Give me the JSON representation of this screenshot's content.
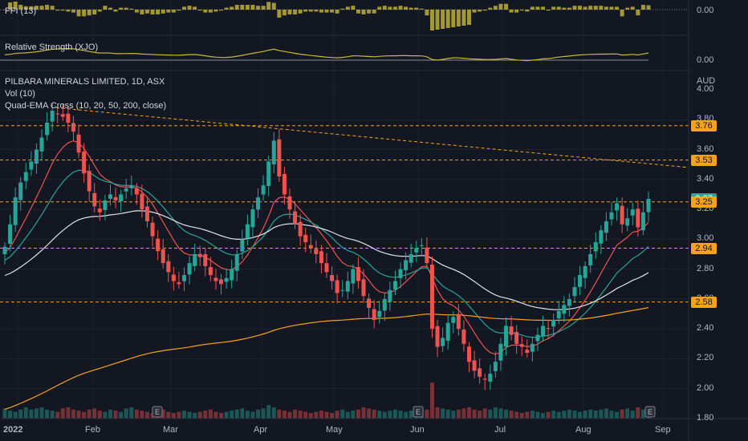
{
  "colors": {
    "background": "#131722",
    "grid": "#2a2e39",
    "up": "#26a69a",
    "down": "#ef5350",
    "ema10": "#ef5350",
    "ema20": "#26a69a",
    "ema50": "#e0e3eb",
    "ema200": "#f7a21b",
    "level_line": "#f7a21b",
    "trend_line": "#f7a21b",
    "indicator_bar": "#c9b93b",
    "rs_line": "#c9b93b",
    "tag_orange": "#f7a21b",
    "tag_teal": "#26a69a"
  },
  "indicators": {
    "ffi": {
      "label": "FFI (13)",
      "value": "0.00"
    },
    "rs": {
      "label": "Relative Strength (XJO)",
      "value": "0.00"
    }
  },
  "main": {
    "title": "PILBARA MINERALS LIMITED, 1D, ASX",
    "vol_label": "Vol (10)",
    "ema_label": "Quad-EMA Cross (10, 20, 50, 200, close)",
    "currency": "AUD"
  },
  "price_tags": [
    {
      "text": "3.76",
      "price": 3.76,
      "style": "orange"
    },
    {
      "text": "3.53",
      "price": 3.53,
      "style": "orange"
    },
    {
      "text": "3.27",
      "price": 3.27,
      "style": "teal"
    },
    {
      "text": "3.25",
      "price": 3.25,
      "style": "orange"
    },
    {
      "text": "2.94",
      "price": 2.94,
      "style": "orange"
    },
    {
      "text": "2.58",
      "price": 2.58,
      "style": "orange"
    }
  ],
  "chart_data": {
    "type": "candlestick",
    "title": "PILBARA MINERALS LIMITED, 1D, ASX",
    "y_axis_ticks": [
      "4.00",
      "3.80",
      "3.60",
      "3.40",
      "3.20",
      "3.00",
      "2.80",
      "2.60",
      "2.40",
      "2.20",
      "2.00",
      "1.80"
    ],
    "ylim": [
      1.8,
      4.0
    ],
    "x_axis_labels": [
      "2022",
      "Feb",
      "Mar",
      "Apr",
      "May",
      "Jun",
      "Jul",
      "Aug",
      "Sep"
    ],
    "horizontal_levels": [
      3.76,
      3.53,
      3.25,
      2.94,
      2.58
    ],
    "trend_line": {
      "from": [
        "Jan",
        3.88
      ],
      "to": [
        "Sep",
        3.48
      ]
    },
    "closes": [
      2.95,
      3.1,
      3.28,
      3.38,
      3.45,
      3.52,
      3.6,
      3.68,
      3.78,
      3.86,
      3.84,
      3.82,
      3.78,
      3.72,
      3.58,
      3.44,
      3.32,
      3.22,
      3.18,
      3.26,
      3.3,
      3.26,
      3.3,
      3.34,
      3.36,
      3.3,
      3.2,
      3.12,
      3.02,
      2.92,
      2.84,
      2.78,
      2.72,
      2.7,
      2.76,
      2.84,
      2.9,
      2.88,
      2.82,
      2.76,
      2.72,
      2.7,
      2.74,
      2.8,
      2.9,
      3.0,
      3.1,
      3.2,
      3.28,
      3.36,
      3.52,
      3.66,
      3.42,
      3.3,
      3.2,
      3.1,
      3.02,
      2.98,
      2.94,
      2.9,
      2.84,
      2.78,
      2.72,
      2.64,
      2.66,
      2.72,
      2.8,
      2.72,
      2.62,
      2.54,
      2.46,
      2.52,
      2.6,
      2.66,
      2.72,
      2.8,
      2.86,
      2.9,
      2.94,
      2.96,
      2.84,
      2.4,
      2.28,
      2.34,
      2.44,
      2.48,
      2.4,
      2.3,
      2.18,
      2.12,
      2.08,
      2.06,
      2.1,
      2.18,
      2.3,
      2.42,
      2.36,
      2.3,
      2.28,
      2.24,
      2.3,
      2.36,
      2.42,
      2.4,
      2.46,
      2.52,
      2.56,
      2.6,
      2.68,
      2.76,
      2.82,
      2.9,
      2.98,
      3.06,
      3.12,
      3.18,
      3.24,
      3.1,
      3.14,
      3.2,
      3.08,
      3.18,
      3.27
    ],
    "volumes": [
      0.9,
      0.7,
      0.6,
      0.8,
      1.0,
      0.8,
      0.9,
      1.0,
      0.8,
      0.7,
      0.6,
      0.9,
      1.0,
      0.8,
      0.7,
      0.6,
      0.8,
      0.9,
      0.7,
      0.6,
      0.8,
      0.7,
      0.6,
      0.9,
      1.0,
      0.8,
      0.7,
      0.6,
      0.5,
      0.7,
      0.8,
      0.6,
      0.5,
      0.6,
      0.7,
      0.6,
      0.5,
      0.6,
      0.7,
      0.8,
      0.6,
      0.5,
      0.6,
      0.7,
      0.8,
      0.9,
      0.7,
      0.6,
      0.8,
      0.9,
      1.2,
      1.0,
      0.8,
      0.7,
      0.6,
      0.8,
      0.7,
      0.6,
      0.5,
      0.6,
      0.7,
      0.6,
      0.5,
      0.7,
      0.8,
      0.6,
      0.7,
      0.8,
      1.0,
      0.9,
      0.8,
      0.7,
      0.6,
      0.7,
      0.8,
      0.7,
      0.6,
      0.7,
      0.8,
      0.9,
      0.8,
      3.2,
      1.0,
      0.9,
      0.8,
      0.7,
      0.8,
      0.9,
      1.0,
      0.8,
      0.7,
      0.9,
      0.8,
      1.0,
      0.9,
      0.8,
      0.7,
      0.6,
      0.5,
      0.6,
      0.7,
      0.6,
      0.5,
      0.6,
      0.7,
      0.6,
      0.7,
      0.8,
      0.7,
      0.6,
      0.7,
      0.8,
      0.7,
      0.8,
      0.9,
      0.7,
      0.6,
      0.8,
      0.9,
      0.7,
      1.0,
      0.8,
      0.9
    ]
  }
}
